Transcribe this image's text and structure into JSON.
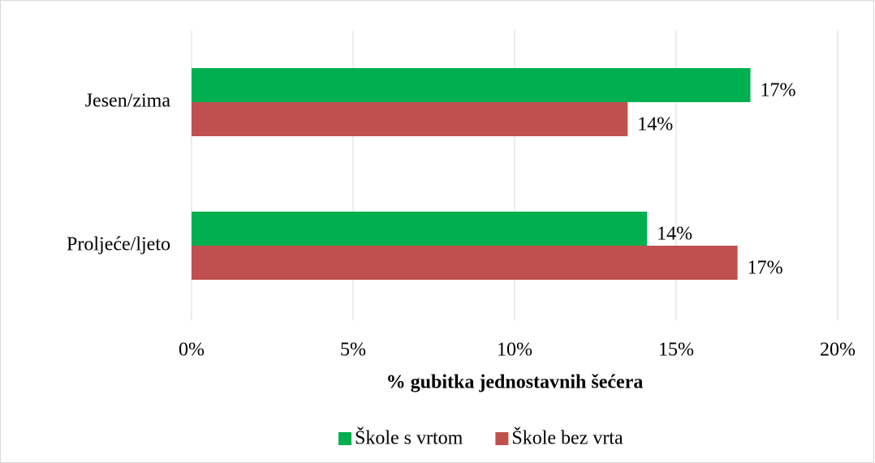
{
  "chart_data": {
    "type": "hbar",
    "categories": [
      "Jesen/zima",
      "Proljeće/ljeto"
    ],
    "series": [
      {
        "name": "Škole s vrtom",
        "color": "#00b050",
        "values": [
          17.3,
          14.1
        ],
        "value_labels": [
          "17%",
          "14%"
        ]
      },
      {
        "name": "Škole bez vrta",
        "color": "#c0504d",
        "values": [
          13.5,
          16.9
        ],
        "value_labels": [
          "14%",
          "17%"
        ]
      }
    ],
    "xlabel": "% gubitka jednostavnih šećera",
    "xlim": [
      0,
      20
    ],
    "xticks": [
      {
        "value": 0,
        "label": "0%"
      },
      {
        "value": 5,
        "label": "5%"
      },
      {
        "value": 10,
        "label": "10%"
      },
      {
        "value": 15,
        "label": "15%"
      },
      {
        "value": 20,
        "label": "20%"
      }
    ],
    "grid": true,
    "legend": "bottom"
  }
}
